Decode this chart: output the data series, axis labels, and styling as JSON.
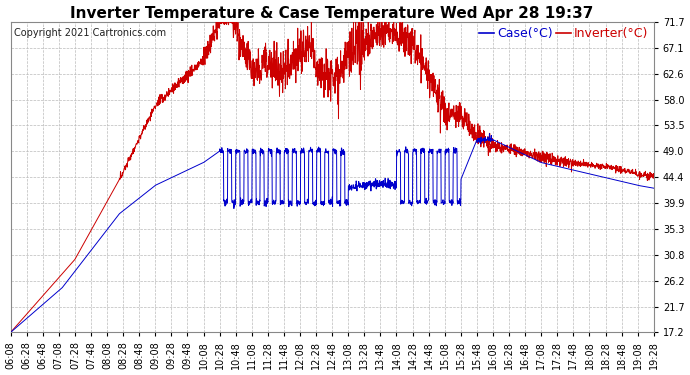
{
  "title": "Inverter Temperature & Case Temperature Wed Apr 28 19:37",
  "copyright": "Copyright 2021 Cartronics.com",
  "legend_case": "Case(°C)",
  "legend_inverter": "Inverter(°C)",
  "y_ticks": [
    17.2,
    21.7,
    26.2,
    30.8,
    35.3,
    39.9,
    44.4,
    49.0,
    53.5,
    58.0,
    62.6,
    67.1,
    71.7
  ],
  "y_min": 17.2,
  "y_max": 71.7,
  "x_labels": [
    "06:08",
    "06:28",
    "06:48",
    "07:08",
    "07:28",
    "07:48",
    "08:08",
    "08:28",
    "08:48",
    "09:08",
    "09:28",
    "09:48",
    "10:08",
    "10:28",
    "10:48",
    "11:08",
    "11:28",
    "11:48",
    "12:08",
    "12:28",
    "12:48",
    "13:08",
    "13:28",
    "13:48",
    "14:08",
    "14:28",
    "14:48",
    "15:08",
    "15:28",
    "15:48",
    "16:08",
    "16:28",
    "16:48",
    "17:08",
    "17:28",
    "17:48",
    "18:08",
    "18:28",
    "18:48",
    "19:08",
    "19:28"
  ],
  "background_color": "#ffffff",
  "plot_bg_color": "#ffffff",
  "grid_color": "#bbbbbb",
  "case_color": "#0000cc",
  "inverter_color": "#cc0000",
  "title_color": "#000000",
  "title_fontsize": 11,
  "copyright_fontsize": 7,
  "legend_fontsize": 9,
  "tick_fontsize": 7,
  "figwidth": 6.9,
  "figheight": 3.75,
  "dpi": 100
}
